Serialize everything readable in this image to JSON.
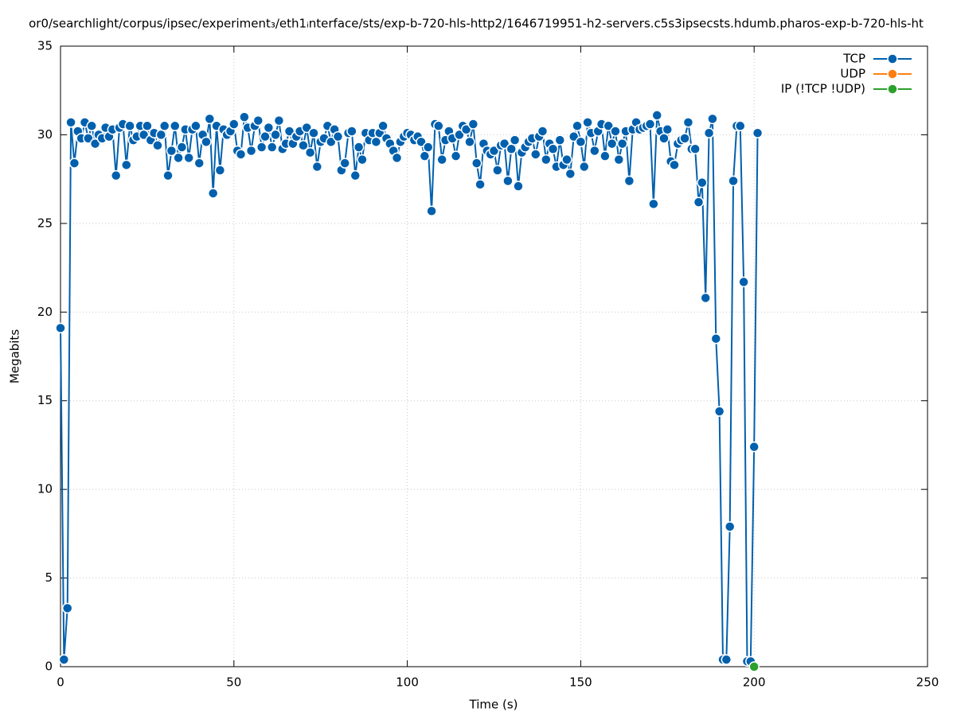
{
  "chart_data": {
    "type": "line",
    "title": "or0/searchlight/corpus/ipsec/experiment₃/eth1ᵢnterface/sts/exp-b-720-hls-http2/1646719951-h2-servers.c5s3ipsecsts.hdumb.pharos-exp-b-720-hls-ht",
    "x_label": "Time (s)",
    "y_label": "Megabits",
    "xlim": [
      0,
      250
    ],
    "xticks": [
      0,
      50,
      100,
      150,
      200,
      250
    ],
    "ylim": [
      0,
      35
    ],
    "yticks": [
      0,
      5,
      10,
      15,
      20,
      25,
      30,
      35
    ],
    "grid": true,
    "legend": "top-right",
    "series": [
      {
        "name": "TCP",
        "color": "#0060ad",
        "x": [
          0,
          1,
          2,
          3,
          4,
          5,
          6,
          7,
          8,
          9,
          10,
          11,
          12,
          13,
          14,
          15,
          16,
          17,
          18,
          19,
          20,
          21,
          22,
          23,
          24,
          25,
          26,
          27,
          28,
          29,
          30,
          31,
          32,
          33,
          34,
          35,
          36,
          37,
          38,
          39,
          40,
          41,
          42,
          43,
          44,
          45,
          46,
          47,
          48,
          49,
          50,
          51,
          52,
          53,
          54,
          55,
          56,
          57,
          58,
          59,
          60,
          61,
          62,
          63,
          64,
          65,
          66,
          67,
          68,
          69,
          70,
          71,
          72,
          73,
          74,
          75,
          76,
          77,
          78,
          79,
          80,
          81,
          82,
          83,
          84,
          85,
          86,
          87,
          88,
          89,
          90,
          91,
          92,
          93,
          94,
          95,
          96,
          97,
          98,
          99,
          100,
          101,
          102,
          103,
          104,
          105,
          106,
          107,
          108,
          109,
          110,
          111,
          112,
          113,
          114,
          115,
          116,
          117,
          118,
          119,
          120,
          121,
          122,
          123,
          124,
          125,
          126,
          127,
          128,
          129,
          130,
          131,
          132,
          133,
          134,
          135,
          136,
          137,
          138,
          139,
          140,
          141,
          142,
          143,
          144,
          145,
          146,
          147,
          148,
          149,
          150,
          151,
          152,
          153,
          154,
          155,
          156,
          157,
          158,
          159,
          160,
          161,
          162,
          163,
          164,
          165,
          166,
          167,
          168,
          169,
          170,
          171,
          172,
          173,
          174,
          175,
          176,
          177,
          178,
          179,
          180,
          181,
          182,
          183,
          184,
          185,
          186,
          187,
          188,
          189,
          190,
          191,
          192,
          193,
          194,
          195,
          196,
          197,
          198,
          199,
          200,
          201
        ],
        "values": [
          19.1,
          0.4,
          3.3,
          30.7,
          28.4,
          30.2,
          29.8,
          30.7,
          29.8,
          30.5,
          29.5,
          30.0,
          29.8,
          30.4,
          29.9,
          30.3,
          27.7,
          30.4,
          30.6,
          28.3,
          30.5,
          29.7,
          29.9,
          30.5,
          30.0,
          30.5,
          29.7,
          30.1,
          29.4,
          30.0,
          30.5,
          27.7,
          29.1,
          30.5,
          28.7,
          29.3,
          30.3,
          28.7,
          30.3,
          30.5,
          28.4,
          30.0,
          29.6,
          30.9,
          26.7,
          30.5,
          28.0,
          30.3,
          30.0,
          30.2,
          30.6,
          29.1,
          28.9,
          31.0,
          30.4,
          29.1,
          30.5,
          30.8,
          29.3,
          29.9,
          30.4,
          29.3,
          30.0,
          30.8,
          29.2,
          29.5,
          30.2,
          29.5,
          29.9,
          30.2,
          29.4,
          30.4,
          29.0,
          30.1,
          28.2,
          29.6,
          29.8,
          30.5,
          29.6,
          30.3,
          29.9,
          28.0,
          28.4,
          30.1,
          30.2,
          27.7,
          29.3,
          28.6,
          30.1,
          29.7,
          30.1,
          29.6,
          30.1,
          30.5,
          29.8,
          29.5,
          29.1,
          28.7,
          29.6,
          29.9,
          30.1,
          30.0,
          29.7,
          29.9,
          29.6,
          28.8,
          29.3,
          25.7,
          30.6,
          30.5,
          28.6,
          29.7,
          30.2,
          29.8,
          28.8,
          30.0,
          30.5,
          30.3,
          29.6,
          30.6,
          28.4,
          27.2,
          29.5,
          29.1,
          28.9,
          29.1,
          28.0,
          29.4,
          29.5,
          27.4,
          29.2,
          29.7,
          27.1,
          29.0,
          29.3,
          29.6,
          29.8,
          28.9,
          29.9,
          30.2,
          28.6,
          29.5,
          29.2,
          28.2,
          29.7,
          28.3,
          28.6,
          27.8,
          29.9,
          30.5,
          29.6,
          28.2,
          30.7,
          30.1,
          29.1,
          30.2,
          30.6,
          28.8,
          30.5,
          29.5,
          30.2,
          28.6,
          29.5,
          30.2,
          27.4,
          30.3,
          30.7,
          30.3,
          30.4,
          30.5,
          30.6,
          26.1,
          31.1,
          30.2,
          29.8,
          30.3,
          28.5,
          28.3,
          29.5,
          29.7,
          29.8,
          30.7,
          29.2,
          29.2,
          26.2,
          27.3,
          20.8,
          30.1,
          30.9,
          18.5,
          14.4,
          0.4,
          0.4,
          7.9,
          27.4,
          30.5,
          30.5,
          21.7,
          0.3,
          0.3,
          12.4,
          30.1
        ]
      },
      {
        "name": "UDP",
        "color": "#ff7f0e",
        "x": [],
        "values": []
      },
      {
        "name": "IP (!TCP  !UDP)",
        "color": "#2ca02c",
        "x": [
          200
        ],
        "values": [
          0
        ]
      }
    ]
  }
}
